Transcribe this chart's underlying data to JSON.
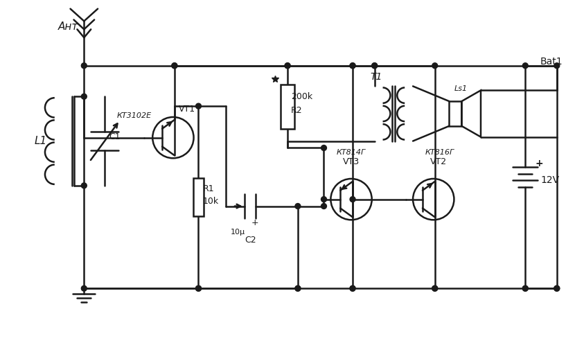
{
  "bg_color": "#ffffff",
  "line_color": "#1a1a1a",
  "lw": 1.8,
  "labels": {
    "ant": "Ант",
    "L1": "L1",
    "C1": "C1",
    "VT1": "VT1",
    "KT3102E": "КТ3102Е",
    "R1": "R1",
    "10k": "10k",
    "R2": "R2",
    "200k": "200k",
    "C2_val": "10μ",
    "C2": "C2",
    "T1": "T1",
    "Ls1": "Ls1",
    "VT2": "VT2",
    "KT816G": "КТ816Г",
    "VT3": "VT3",
    "KT814G": "КТ814Г",
    "Bat1": "Bat1",
    "12V": "12V",
    "plus": "+"
  }
}
